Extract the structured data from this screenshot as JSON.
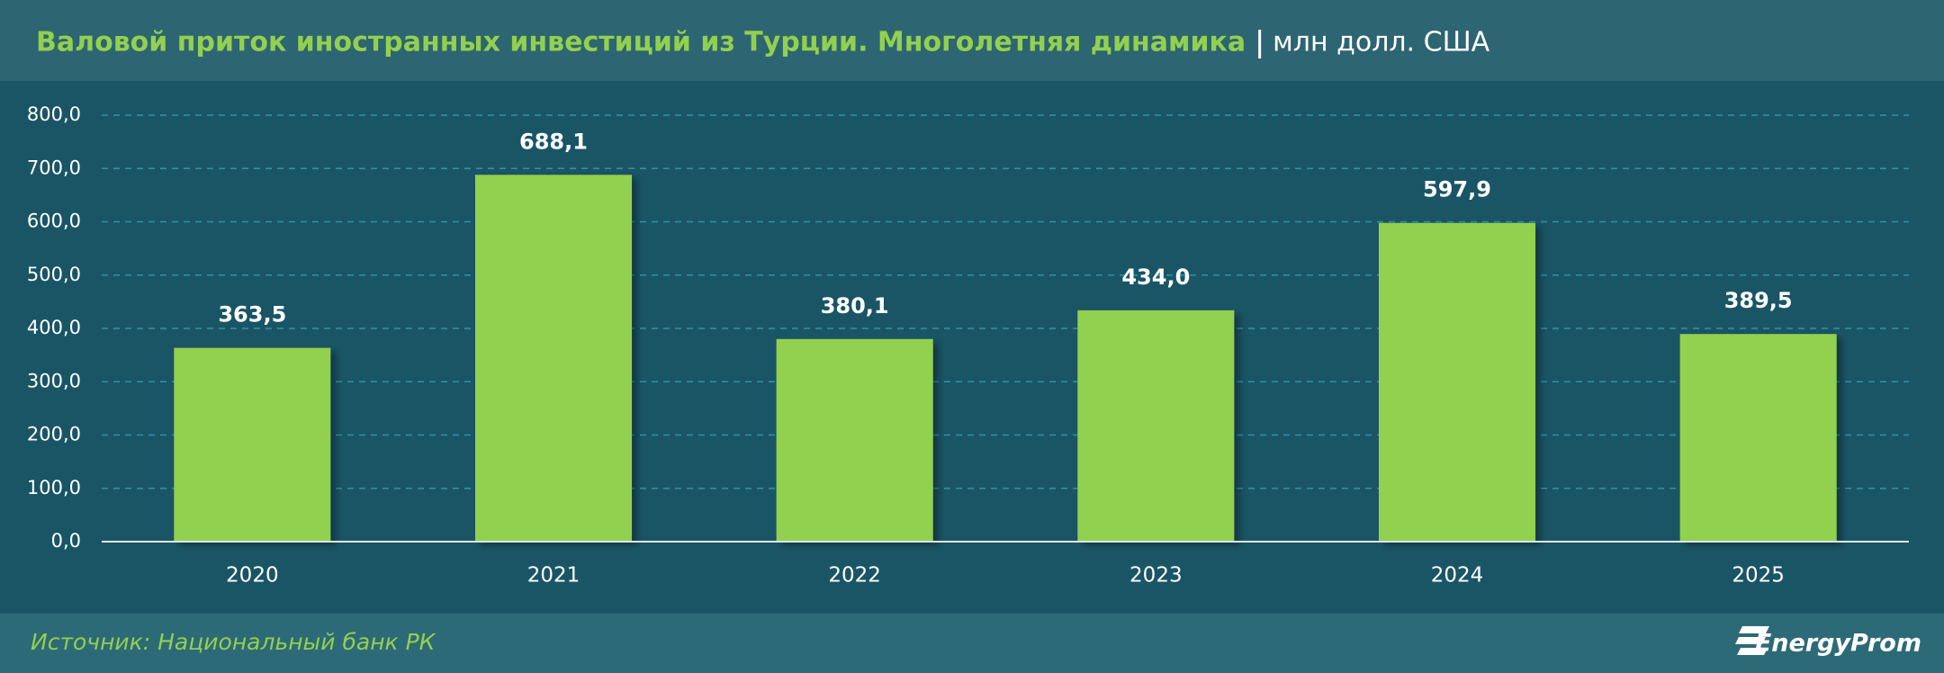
{
  "chart_data": {
    "type": "bar",
    "title": "Валовой приток иностранных инвестиций из Турции. Многолетняя динамика",
    "subtitle": "млн долл. США",
    "categories": [
      "2020",
      "2021",
      "2022",
      "2023",
      "2024",
      "2025"
    ],
    "values": [
      363.5,
      688.1,
      380.1,
      434.0,
      597.9,
      389.5
    ],
    "value_labels": [
      "363,5",
      "688,1",
      "380,1",
      "434,0",
      "597,9",
      "389,5"
    ],
    "color": "#92d050",
    "ylim": [
      0,
      800
    ],
    "yticks": [
      {
        "value": 0,
        "label": "0,0"
      },
      {
        "value": 100,
        "label": "100,0"
      },
      {
        "value": 200,
        "label": "200,0"
      },
      {
        "value": 300,
        "label": "300,0"
      },
      {
        "value": 400,
        "label": "400,0"
      },
      {
        "value": 500,
        "label": "500,0"
      },
      {
        "value": 600,
        "label": "600,0"
      },
      {
        "value": 700,
        "label": "700,0"
      },
      {
        "value": 800,
        "label": "800,0"
      }
    ],
    "grid": true,
    "source": "Источник: Национальный банк РК",
    "logo": "EnergyProm"
  }
}
